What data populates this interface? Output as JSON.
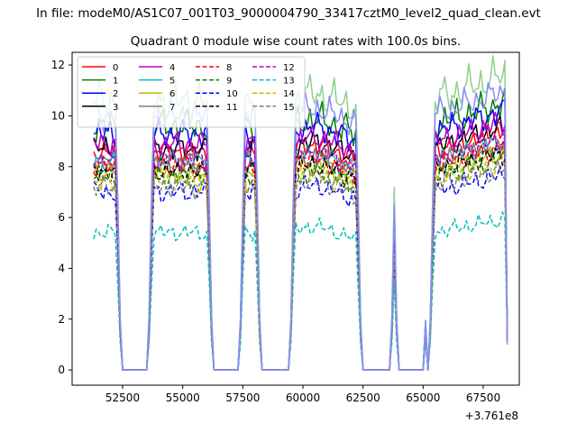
{
  "suptitle": "In file: modeM0/AS1C07_001T03_9000004790_33417cztM0_level2_quad_clean.evt",
  "chart_data": {
    "type": "line",
    "title": "Quadrant 0 module wise count rates with 100.0s bins.",
    "xlabel": "",
    "ylabel": "",
    "x_offset_label": "+3.761e8",
    "xlim": [
      50400,
      69000
    ],
    "ylim": [
      -0.6,
      12.5
    ],
    "xticks": [
      52500,
      55000,
      57500,
      60000,
      62500,
      65000,
      67500
    ],
    "yticks": [
      0,
      2,
      4,
      6,
      8,
      10,
      12
    ],
    "x_start": 51300,
    "x_end": 68500,
    "x_step": 100,
    "gaps": [
      [
        52400,
        53600
      ],
      [
        56200,
        57400
      ],
      [
        58200,
        59500
      ],
      [
        62400,
        63700
      ],
      [
        63900,
        65100
      ],
      [
        65100,
        65300
      ]
    ],
    "grid": false,
    "legend": {
      "position": "upper-left",
      "columns": 4
    },
    "series": [
      {
        "name": "0",
        "color": "#ff0000",
        "dash": "solid",
        "level": 8.6,
        "amp": 0.45
      },
      {
        "name": "1",
        "color": "#008000",
        "dash": "solid",
        "level": 9.6,
        "amp": 0.7
      },
      {
        "name": "2",
        "color": "#0000ff",
        "dash": "solid",
        "level": 9.3,
        "amp": 0.6
      },
      {
        "name": "3",
        "color": "#000000",
        "dash": "solid",
        "level": 8.7,
        "amp": 0.5
      },
      {
        "name": "4",
        "color": "#bf00bf",
        "dash": "solid",
        "level": 8.9,
        "amp": 0.5
      },
      {
        "name": "5",
        "color": "#00bfbf",
        "dash": "solid",
        "level": 8.2,
        "amp": 0.45
      },
      {
        "name": "6",
        "color": "#bfbf00",
        "dash": "solid",
        "level": 7.8,
        "amp": 0.45
      },
      {
        "name": "7",
        "color": "#808080",
        "dash": "solid",
        "level": 8.1,
        "amp": 0.45
      },
      {
        "name": "8",
        "color": "#ff0000",
        "dash": "dashed",
        "level": 8.0,
        "amp": 0.45
      },
      {
        "name": "9",
        "color": "#008000",
        "dash": "dashed",
        "level": 7.6,
        "amp": 0.45
      },
      {
        "name": "10",
        "color": "#0000ff",
        "dash": "dashed",
        "level": 7.0,
        "amp": 0.45
      },
      {
        "name": "11",
        "color": "#000000",
        "dash": "dashed",
        "level": 7.8,
        "amp": 0.45
      },
      {
        "name": "12",
        "color": "#bf00bf",
        "dash": "dashed",
        "level": 8.3,
        "amp": 0.45
      },
      {
        "name": "13",
        "color": "#00bfbf",
        "dash": "dashed",
        "level": 5.4,
        "amp": 0.35
      },
      {
        "name": "14",
        "color": "#bfbf00",
        "dash": "dashed",
        "level": 7.4,
        "amp": 0.45
      },
      {
        "name": "15",
        "color": "#808080",
        "dash": "dashed",
        "level": 7.2,
        "amp": 0.45
      },
      {
        "name": "",
        "color": "#8ed08e",
        "dash": "solid",
        "level": 10.6,
        "amp": 0.8,
        "no_legend": true
      },
      {
        "name": "",
        "color": "#8a8aff",
        "dash": "solid",
        "level": 10.0,
        "amp": 0.6,
        "no_legend": true
      }
    ]
  }
}
